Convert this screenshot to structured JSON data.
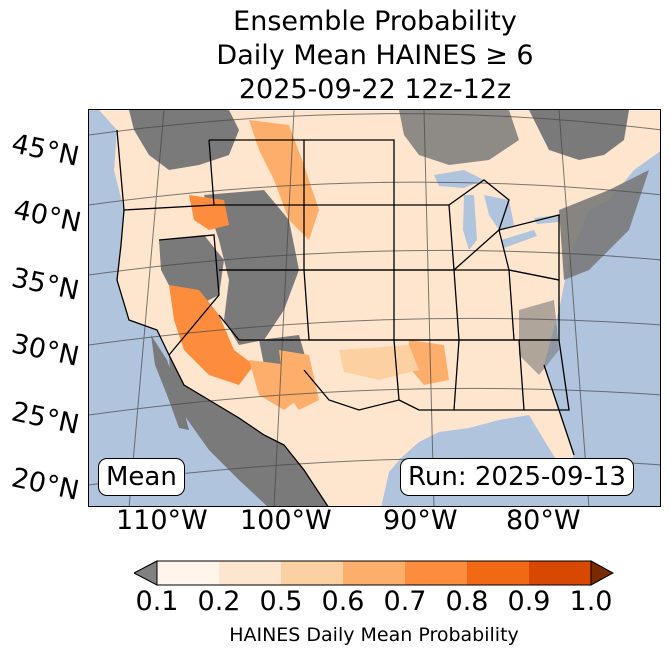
{
  "title": {
    "line1": "Ensemble Probability",
    "line2": "Daily Mean HAINES ≥ 6",
    "line3": "2025-09-22 12z-12z"
  },
  "map": {
    "latitude_labels": [
      "45°N",
      "40°N",
      "35°N",
      "30°N",
      "25°N",
      "20°N"
    ],
    "longitude_labels": [
      "110°W",
      "100°W",
      "90°W",
      "80°W"
    ],
    "mean_badge": "Mean",
    "run_badge": "Run: 2025-09-13",
    "colors": {
      "ocean": "#b0c4de",
      "masked": "#7a7a7a",
      "state_lines": "#000000"
    }
  },
  "colorbar": {
    "label": "HAINES Daily Mean Probability",
    "ticks": [
      "0.1",
      "0.2",
      "0.5",
      "0.6",
      "0.7",
      "0.8",
      "0.9",
      "1.0"
    ],
    "under_color": "#808080",
    "over_color": "#7a2a00",
    "colors": [
      "#fff5eb",
      "#fee6ce",
      "#fdd0a2",
      "#fdae6b",
      "#fd8d3c",
      "#f16913",
      "#d94801"
    ]
  }
}
